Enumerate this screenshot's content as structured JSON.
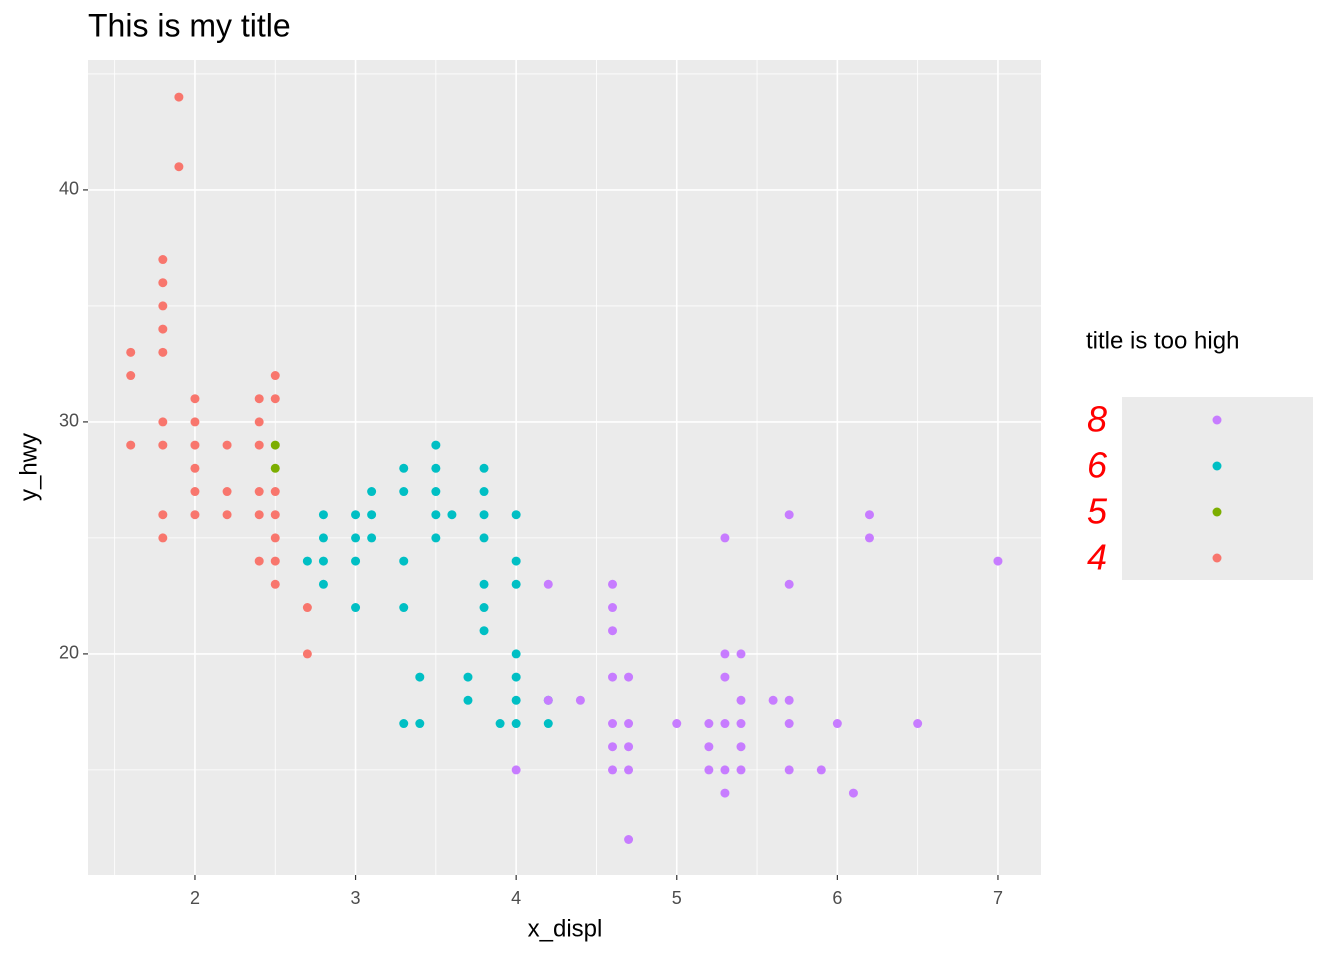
{
  "chart_data": {
    "type": "scatter",
    "title": "This is my title",
    "x_label": "x_displ",
    "y_label": "y_hwy",
    "legend_title": "title is too high",
    "grid": true,
    "xlim": [
      1.334,
      7.268
    ],
    "ylim": [
      10.47,
      45.6
    ],
    "xticks": [
      2,
      3,
      4,
      5,
      6,
      7
    ],
    "yticks": [
      20,
      30,
      40
    ],
    "series": [
      {
        "name": "8",
        "color": "#C77CFF",
        "x": [
          4.0,
          4.2,
          4.2,
          4.4,
          4.6,
          4.6,
          4.6,
          4.6,
          4.6,
          4.6,
          4.6,
          4.7,
          4.7,
          4.7,
          4.7,
          4.7,
          5.0,
          5.2,
          5.2,
          5.2,
          5.3,
          5.3,
          5.3,
          5.3,
          5.3,
          5.3,
          5.4,
          5.4,
          5.4,
          5.4,
          5.4,
          5.6,
          5.7,
          5.7,
          5.7,
          5.7,
          5.7,
          5.9,
          6.0,
          6.1,
          6.2,
          6.2,
          6.5,
          7.0
        ],
        "values": [
          15,
          23,
          18,
          18,
          23,
          22,
          21,
          19,
          17,
          16,
          15,
          19,
          17,
          16,
          15,
          12,
          17,
          17,
          16,
          15,
          25,
          20,
          19,
          17,
          15,
          14,
          20,
          18,
          17,
          16,
          15,
          18,
          26,
          23,
          18,
          17,
          15,
          15,
          17,
          14,
          26,
          25,
          17,
          24
        ]
      },
      {
        "name": "6",
        "color": "#00BFC4",
        "x": [
          2.7,
          2.8,
          2.8,
          2.8,
          2.8,
          3.0,
          3.0,
          3.0,
          3.0,
          3.1,
          3.1,
          3.1,
          3.3,
          3.3,
          3.3,
          3.3,
          3.3,
          3.4,
          3.4,
          3.5,
          3.5,
          3.5,
          3.5,
          3.5,
          3.6,
          3.7,
          3.7,
          3.8,
          3.8,
          3.8,
          3.8,
          3.8,
          3.8,
          3.8,
          3.9,
          4.0,
          4.0,
          4.0,
          4.0,
          4.0,
          4.0,
          4.0,
          4.2,
          4.2
        ],
        "values": [
          24,
          26,
          25,
          24,
          23,
          26,
          25,
          24,
          22,
          27,
          26,
          25,
          28,
          27,
          24,
          22,
          17,
          19,
          17,
          29,
          28,
          27,
          26,
          25,
          26,
          19,
          18,
          28,
          27,
          26,
          25,
          23,
          22,
          21,
          17,
          26,
          24,
          23,
          20,
          19,
          18,
          17,
          18,
          17
        ]
      },
      {
        "name": "5",
        "color": "#7CAE00",
        "x": [
          2.5,
          2.5
        ],
        "values": [
          29,
          28
        ]
      },
      {
        "name": "4",
        "color": "#F8766D",
        "x": [
          1.6,
          1.6,
          1.6,
          1.8,
          1.8,
          1.8,
          1.8,
          1.8,
          1.8,
          1.8,
          1.8,
          1.8,
          1.9,
          1.9,
          2.0,
          2.0,
          2.0,
          2.0,
          2.0,
          2.0,
          2.2,
          2.2,
          2.2,
          2.4,
          2.4,
          2.4,
          2.4,
          2.4,
          2.4,
          2.5,
          2.5,
          2.5,
          2.5,
          2.5,
          2.5,
          2.5,
          2.7,
          2.7
        ],
        "values": [
          33,
          32,
          29,
          37,
          36,
          35,
          34,
          33,
          30,
          29,
          26,
          25,
          44,
          41,
          31,
          30,
          29,
          28,
          27,
          26,
          29,
          27,
          26,
          31,
          30,
          29,
          27,
          26,
          24,
          32,
          31,
          27,
          26,
          25,
          24,
          23,
          22,
          20
        ]
      }
    ]
  }
}
